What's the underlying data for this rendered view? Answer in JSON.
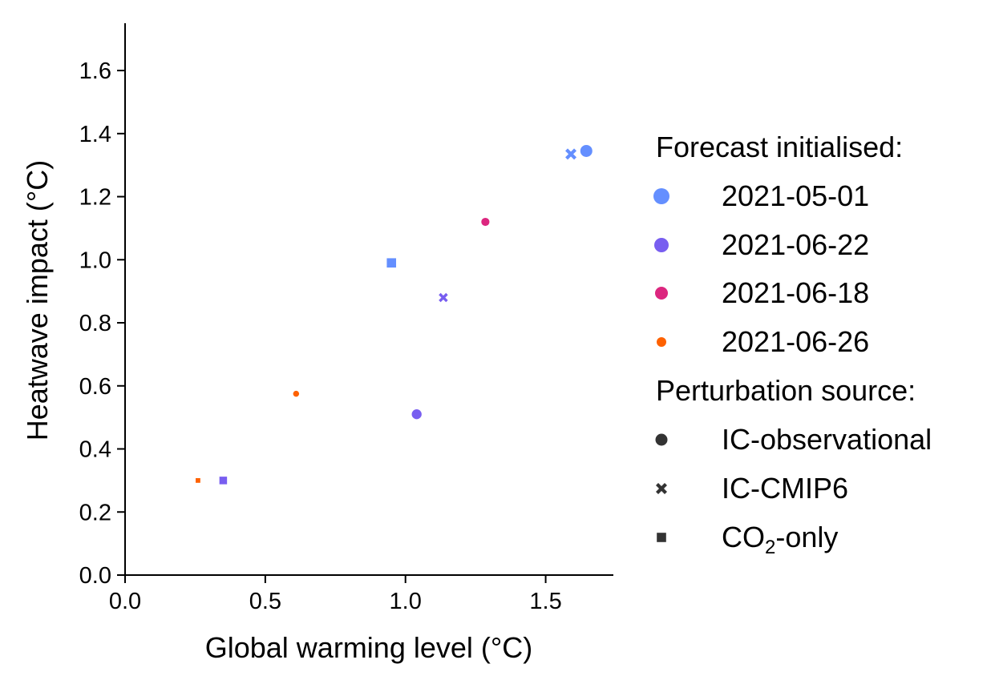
{
  "chart_data": {
    "type": "scatter",
    "xlabel": "Global warming level (°C)",
    "ylabel": "Heatwave impact (°C)",
    "xlim": [
      0,
      1.75
    ],
    "ylim": [
      0,
      1.75
    ],
    "x_ticks": [
      "0.0",
      "0.5",
      "1.0",
      "1.5"
    ],
    "x_tick_values": [
      0,
      0.5,
      1.0,
      1.5
    ],
    "y_ticks": [
      "0.0",
      "0.2",
      "0.4",
      "0.6",
      "0.8",
      "1.0",
      "1.2",
      "1.4",
      "1.6"
    ],
    "y_tick_values": [
      0,
      0.2,
      0.4,
      0.6,
      0.8,
      1.0,
      1.2,
      1.4,
      1.6
    ],
    "grid": false,
    "legend": {
      "placement": "right",
      "hue_title": "Forecast initialised:",
      "hue_entries": [
        {
          "label": "2021-05-01",
          "color": "#648FFF"
        },
        {
          "label": "2021-06-22",
          "color": "#785EF0"
        },
        {
          "label": "2021-06-18",
          "color": "#DC267F"
        },
        {
          "label": "2021-06-26",
          "color": "#FE6100"
        }
      ],
      "style_title": "Perturbation source:",
      "style_entries": [
        {
          "label": "IC-observational",
          "marker": "circle"
        },
        {
          "label": "IC-CMIP6",
          "marker": "x"
        },
        {
          "label_main": "CO",
          "label_sub": "2",
          "label_rest": "-only",
          "marker": "square"
        }
      ],
      "style_color": "#333333"
    },
    "points": [
      {
        "x": 1.645,
        "y": 1.345,
        "init": "2021-05-01",
        "source": "IC-observational"
      },
      {
        "x": 1.59,
        "y": 1.335,
        "init": "2021-05-01",
        "source": "IC-CMIP6"
      },
      {
        "x": 0.95,
        "y": 0.99,
        "init": "2021-05-01",
        "source": "CO2-only"
      },
      {
        "x": 1.04,
        "y": 0.51,
        "init": "2021-06-22",
        "source": "IC-observational"
      },
      {
        "x": 1.135,
        "y": 0.88,
        "init": "2021-06-22",
        "source": "IC-CMIP6"
      },
      {
        "x": 0.35,
        "y": 0.3,
        "init": "2021-06-22",
        "source": "CO2-only"
      },
      {
        "x": 1.285,
        "y": 1.12,
        "init": "2021-06-18",
        "source": "IC-observational"
      },
      {
        "x": 0.61,
        "y": 0.575,
        "init": "2021-06-26",
        "source": "IC-observational"
      },
      {
        "x": 0.26,
        "y": 0.3,
        "init": "2021-06-26",
        "source": "CO2-only"
      }
    ]
  }
}
